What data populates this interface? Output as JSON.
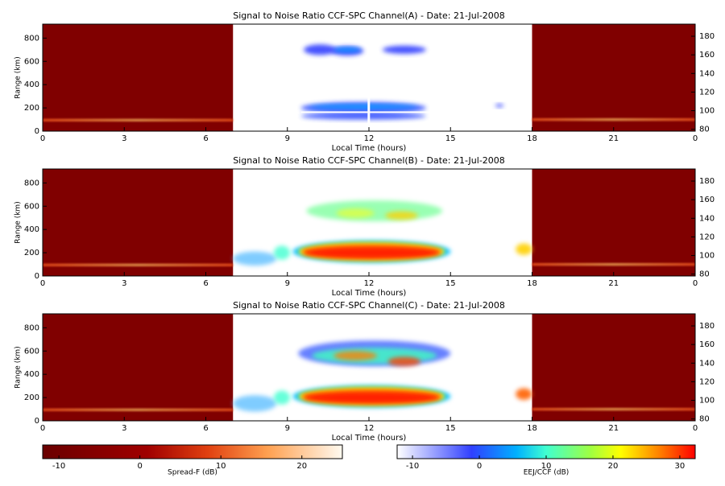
{
  "chart_data": [
    {
      "type": "heatmap",
      "title": "Signal to Noise Ratio CCF-SPC Channel(A) - Date: 21-Jul-2008",
      "xlabel": "Local Time (hours)",
      "ylabel": "Range (km)",
      "xlim": [
        0,
        24
      ],
      "xticks": [
        0,
        3,
        6,
        9,
        12,
        15,
        18,
        21,
        {
          "value": 24,
          "label": "0"
        }
      ],
      "ylim": [
        0,
        920
      ],
      "yticks": [
        0,
        200,
        400,
        600,
        800
      ],
      "y2lim": [
        78,
        193
      ],
      "y2ticks": [
        80,
        100,
        120,
        140,
        160,
        180
      ]
    },
    {
      "type": "heatmap",
      "title": "Signal to Noise Ratio CCF-SPC Channel(B) - Date: 21-Jul-2008",
      "xlabel": "Local Time (hours)",
      "ylabel": "Range (km)",
      "xlim": [
        0,
        24
      ],
      "xticks": [
        0,
        3,
        6,
        9,
        12,
        15,
        18,
        21,
        {
          "value": 24,
          "label": "0"
        }
      ],
      "ylim": [
        0,
        920
      ],
      "yticks": [
        0,
        200,
        400,
        600,
        800
      ],
      "y2lim": [
        78,
        193
      ],
      "y2ticks": [
        80,
        100,
        120,
        140,
        160,
        180
      ]
    },
    {
      "type": "heatmap",
      "title": "Signal to Noise Ratio CCF-SPC Channel(C) - Date: 21-Jul-2008",
      "xlabel": "Local Time (hours)",
      "ylabel": "Range (km)",
      "xlim": [
        0,
        24
      ],
      "xticks": [
        0,
        3,
        6,
        9,
        12,
        15,
        18,
        21,
        {
          "value": 24,
          "label": "0"
        }
      ],
      "ylim": [
        0,
        920
      ],
      "yticks": [
        0,
        200,
        400,
        600,
        800
      ],
      "y2lim": [
        78,
        193
      ],
      "y2ticks": [
        80,
        100,
        120,
        140,
        160,
        180
      ]
    }
  ],
  "colorbars": [
    {
      "label": "Spread-F (dB)",
      "lim": [
        -12,
        25
      ],
      "ticks": [
        -10,
        0,
        10,
        20
      ]
    },
    {
      "label": "EEJ/CCF (dB)",
      "lim": [
        -12.3,
        32.3
      ],
      "ticks": [
        -10,
        0,
        10,
        20,
        30
      ]
    }
  ]
}
